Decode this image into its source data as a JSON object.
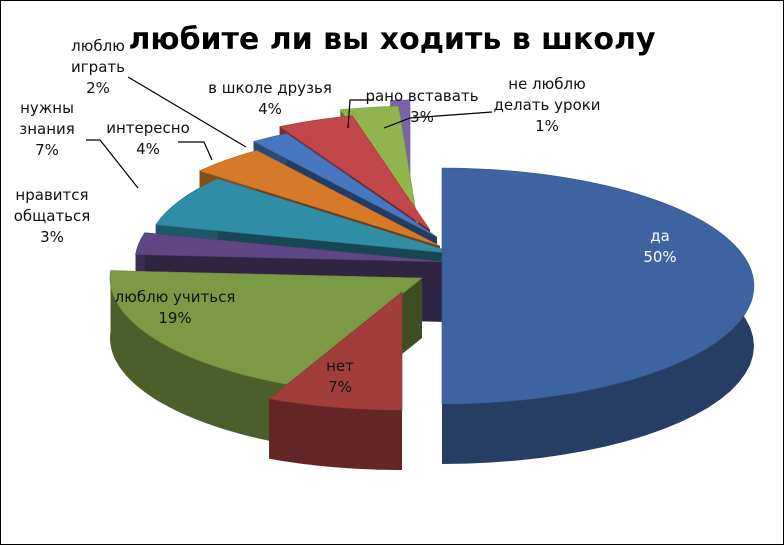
{
  "chart_data": {
    "type": "pie",
    "title": "любите ли вы ходить в школу",
    "style": "3d-exploded",
    "slices": [
      {
        "label": "да",
        "value": 50,
        "display": "50%",
        "color": "#3d64a0"
      },
      {
        "label": "нет",
        "value": 7,
        "display": "7%",
        "color": "#a13e3c"
      },
      {
        "label": "люблю учиться",
        "value": 19,
        "display": "19%",
        "color": "#7b9a43"
      },
      {
        "label": "нравится общаться",
        "value": 3,
        "display": "3%",
        "color": "#5e4784"
      },
      {
        "label": "нужны знания",
        "value": 7,
        "display": "7%",
        "color": "#2f8ea6"
      },
      {
        "label": "интересно",
        "value": 4,
        "display": "4%",
        "color": "#d67a2a"
      },
      {
        "label": "люблю играть",
        "value": 2,
        "display": "2%",
        "color": "#4677c0"
      },
      {
        "label": "в школе друзья",
        "value": 4,
        "display": "4%",
        "color": "#c1474a"
      },
      {
        "label": "рано вставать",
        "value": 3,
        "display": "3%",
        "color": "#91b54e"
      },
      {
        "label": "не люблю делать уроки",
        "value": 1,
        "display": "1%",
        "color": "#7a63a6"
      }
    ],
    "legend": "none"
  }
}
